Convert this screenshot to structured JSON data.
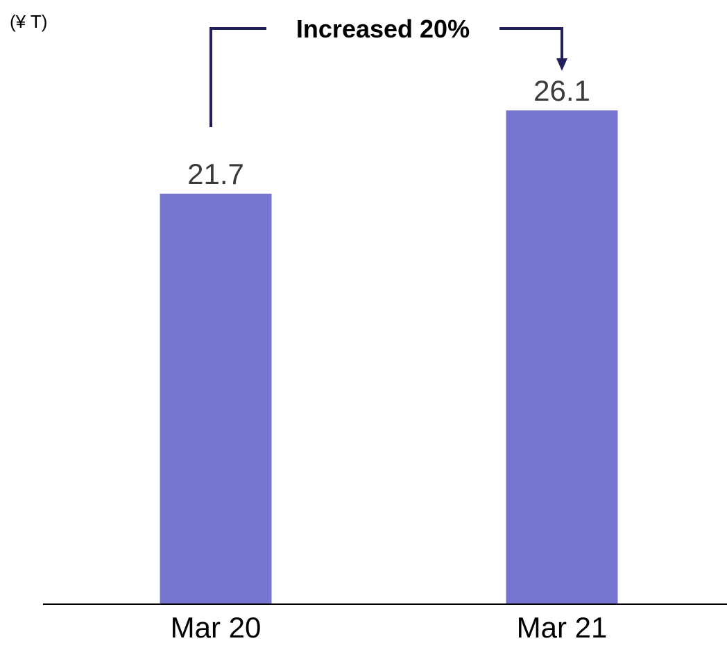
{
  "chart_data": {
    "type": "bar",
    "unit_label": "(¥ T)",
    "categories": [
      "Mar 20",
      "Mar 21"
    ],
    "values": [
      21.7,
      26.1
    ],
    "value_labels": [
      "21.7",
      "26.1"
    ],
    "title": "",
    "xlabel": "",
    "ylabel": "",
    "ylim": [
      0,
      30
    ],
    "grid": false,
    "colors": {
      "bar": "#7676d0",
      "axis": "#000000",
      "annotation": "#1f1f5c"
    },
    "annotation": {
      "text": "Increased 20%",
      "from_category": "Mar 20",
      "to_category": "Mar 21"
    }
  }
}
